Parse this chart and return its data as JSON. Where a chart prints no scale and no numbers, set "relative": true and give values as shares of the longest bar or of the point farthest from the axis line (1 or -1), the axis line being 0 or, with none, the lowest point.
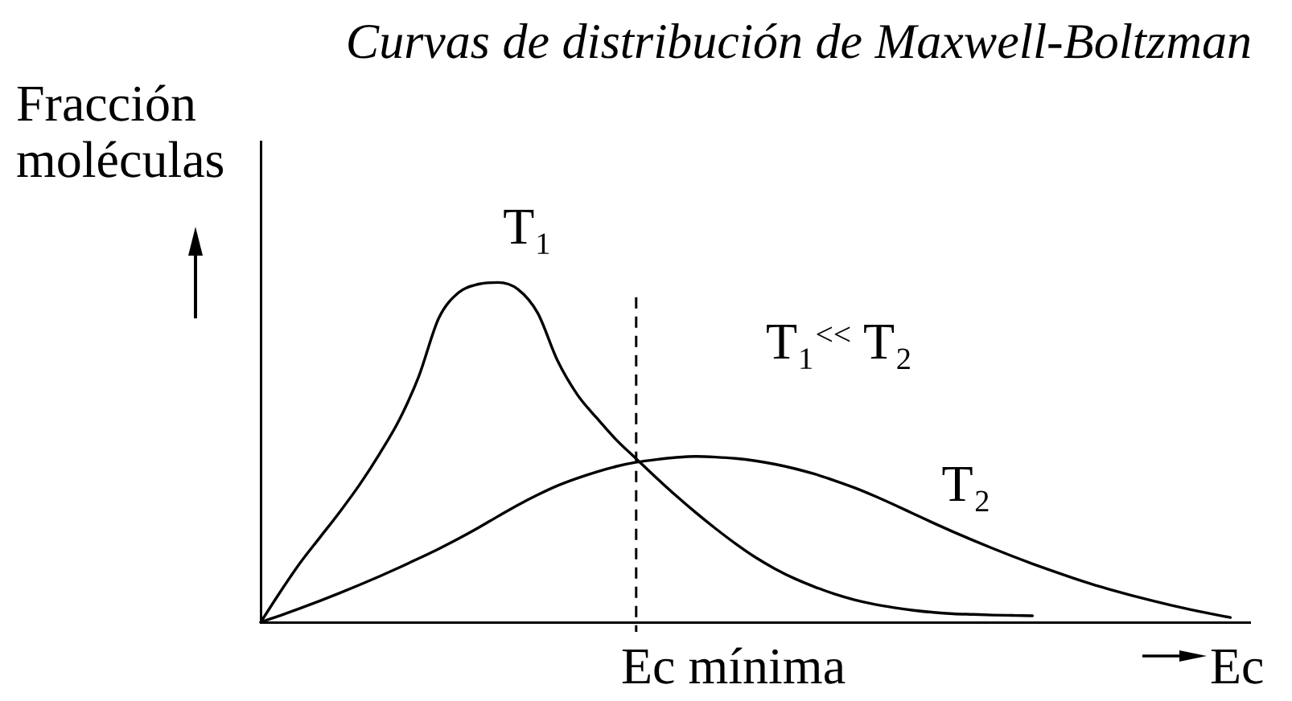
{
  "chart_data": {
    "type": "line",
    "title": "Curvas de distribución de Maxwell-Boltzman",
    "xlabel": "Ec",
    "ylabel": "Fracción moléculas",
    "annotations": [
      "T₁$^{<<}$ T₂",
      "Ec mínima"
    ],
    "relative": true,
    "marker": "none",
    "line_style": "solid",
    "categories": [
      null,
      null,
      null,
      null,
      null,
      null,
      null,
      null,
      null,
      null,
      null,
      null,
      null,
      null,
      null,
      null,
      null,
      null,
      null,
      null,
      null,
      null,
      null,
      null,
      null,
      null,
      null,
      null,
      null,
      null,
      null,
      null,
      null,
      null,
      null,
      null,
      null,
      null,
      null,
      null,
      null,
      null,
      null,
      null,
      null,
      null,
      null,
      null,
      null,
      null,
      null
    ],
    "series": [
      {
        "name": "T₁",
        "color": "#000000",
        "values": [
          0,
          0.09,
          0.175,
          0.25,
          0.325,
          0.405,
          0.495,
          0.595,
          0.725,
          0.895,
          0.97,
          0.995,
          1,
          0.98,
          0.91,
          0.77,
          0.67,
          0.6,
          0.535,
          0.48,
          0.425,
          0.372,
          0.322,
          0.275,
          0.231,
          0.191,
          0.157,
          0.128,
          0.104,
          0.083,
          0.066,
          0.053,
          0.043,
          0.035,
          0.029,
          0.025,
          0.023,
          0.021,
          0.02,
          0.019,
          null,
          null,
          null,
          null,
          null,
          null,
          null,
          null,
          null,
          null,
          null
        ]
      },
      {
        "name": "T₂",
        "color": "#000000",
        "values": [
          0,
          0.02,
          0.041,
          0.063,
          0.086,
          0.11,
          0.135,
          0.161,
          0.188,
          0.216,
          0.246,
          0.278,
          0.312,
          0.345,
          0.375,
          0.402,
          0.424,
          0.443,
          0.459,
          0.471,
          0.479,
          0.485,
          0.488,
          0.486,
          0.482,
          0.475,
          0.465,
          0.452,
          0.436,
          0.417,
          0.396,
          0.372,
          0.346,
          0.319,
          0.292,
          0.266,
          0.241,
          0.217,
          0.194,
          0.172,
          0.151,
          0.131,
          0.112,
          0.095,
          0.079,
          0.064,
          0.05,
          0.037,
          0.025,
          0.014,
          null
        ]
      }
    ]
  }
}
